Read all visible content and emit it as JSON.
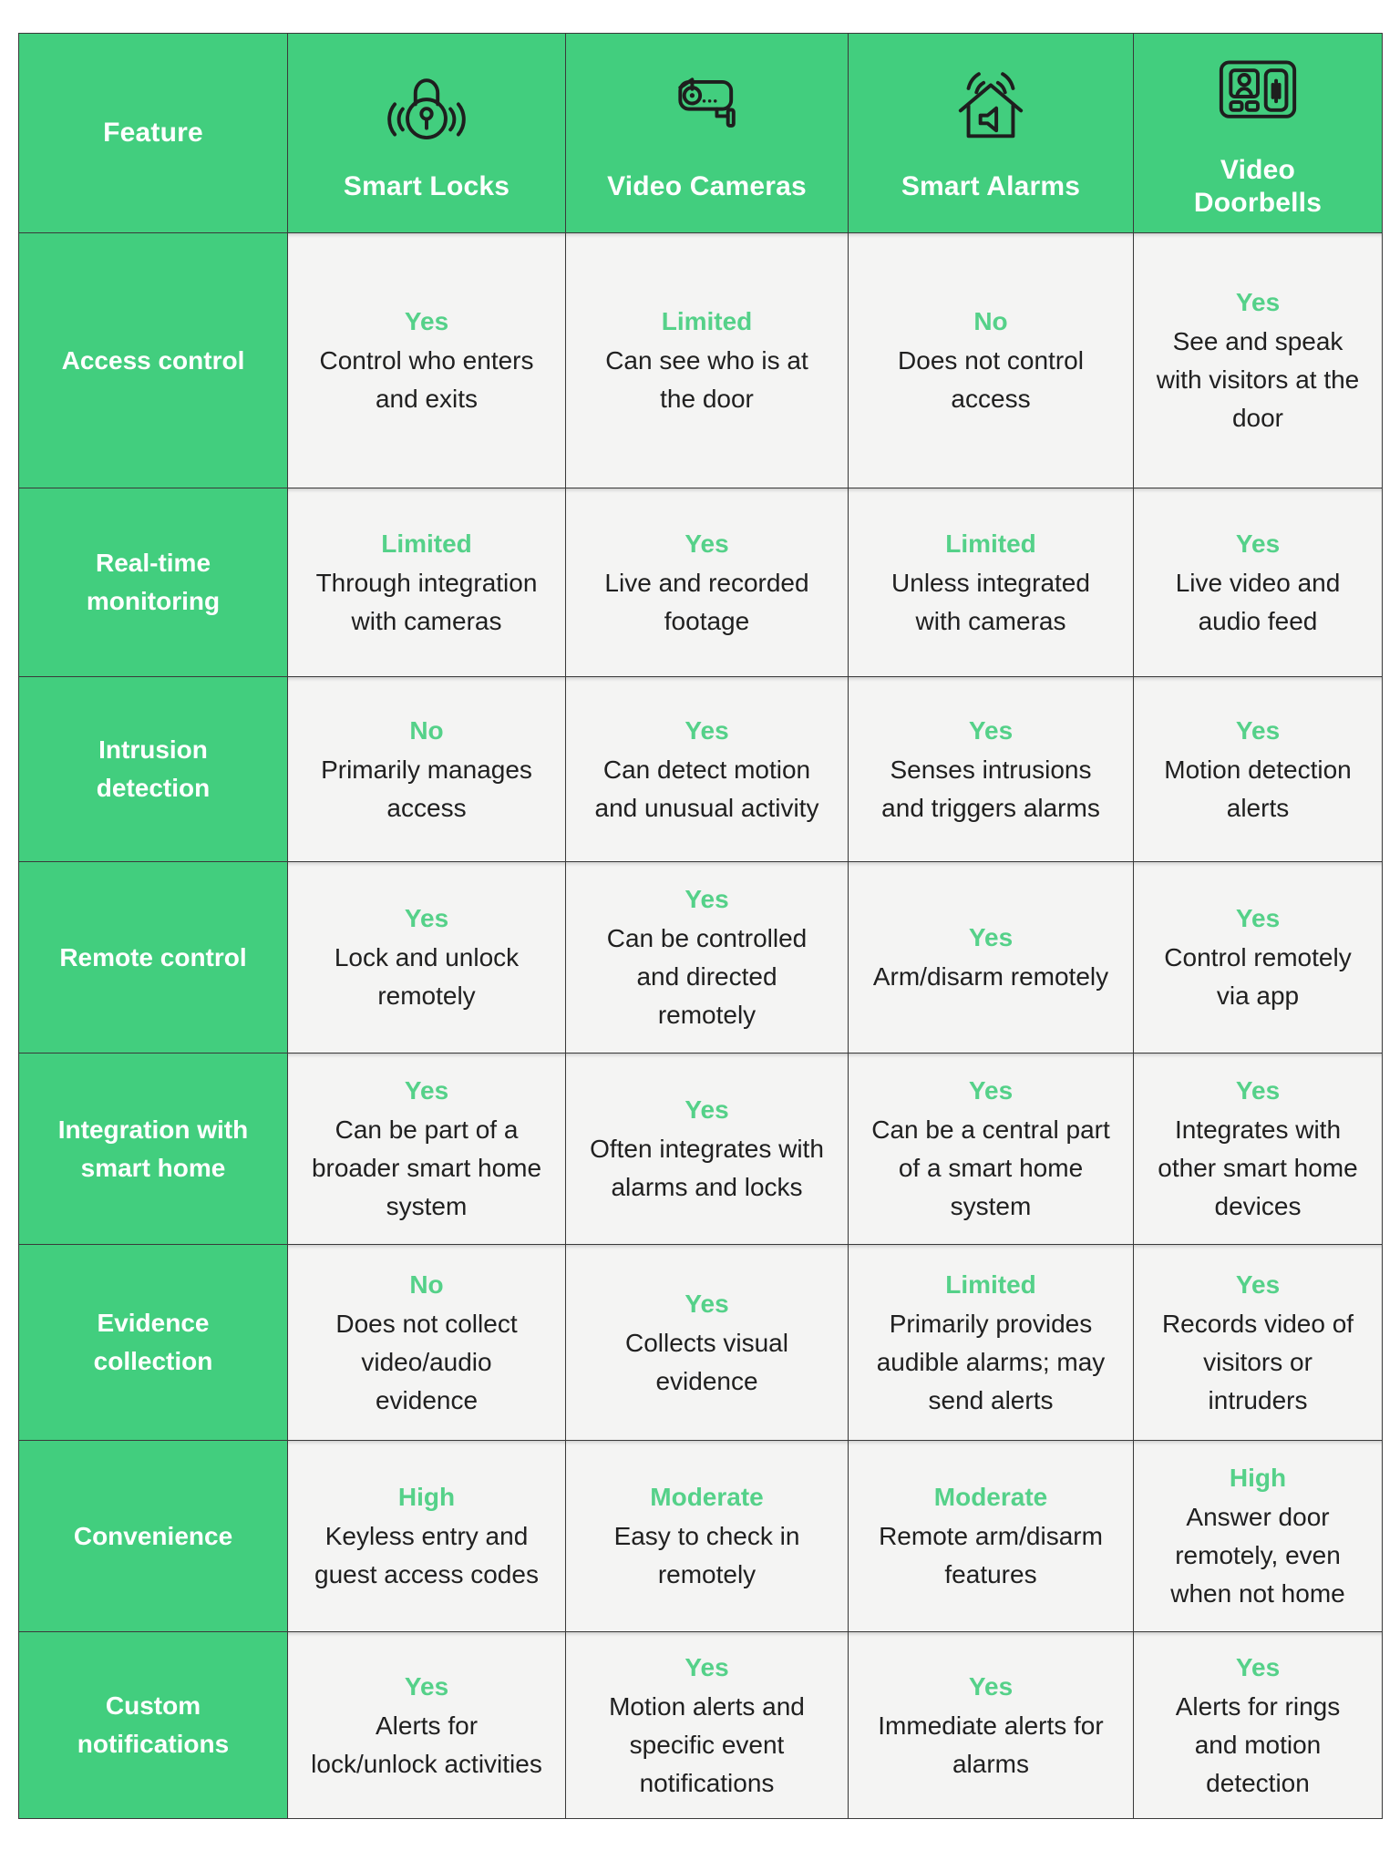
{
  "chart_data": {
    "type": "table",
    "header": {
      "feature_label": "Feature",
      "columns": [
        {
          "label": "Smart Locks",
          "icon": "smart-lock-icon"
        },
        {
          "label": "Video Cameras",
          "icon": "video-camera-icon"
        },
        {
          "label": "Smart Alarms",
          "icon": "smart-alarm-icon"
        },
        {
          "label": "Video Doorbells",
          "icon": "video-doorbell-icon"
        }
      ]
    },
    "rows": [
      {
        "feature": "Access control",
        "cells": [
          {
            "status": "Yes",
            "text": "Control who enters and exits"
          },
          {
            "status": "Limited",
            "text": "Can see who is at the door"
          },
          {
            "status": "No",
            "text": "Does not control access"
          },
          {
            "status": "Yes",
            "text": "See and speak with visitors at the door"
          }
        ]
      },
      {
        "feature": "Real-time monitoring",
        "cells": [
          {
            "status": "Limited",
            "text": "Through integration with cameras"
          },
          {
            "status": "Yes",
            "text": "Live and recorded footage"
          },
          {
            "status": "Limited",
            "text": "Unless integrated with cameras"
          },
          {
            "status": "Yes",
            "text": "Live video and audio feed"
          }
        ]
      },
      {
        "feature": "Intrusion detection",
        "cells": [
          {
            "status": "No",
            "text": "Primarily manages access"
          },
          {
            "status": "Yes",
            "text": "Can detect motion and unusual activity"
          },
          {
            "status": "Yes",
            "text": "Senses intrusions and triggers alarms"
          },
          {
            "status": "Yes",
            "text": "Motion detection alerts"
          }
        ]
      },
      {
        "feature": "Remote control",
        "cells": [
          {
            "status": "Yes",
            "text": "Lock and unlock remotely"
          },
          {
            "status": "Yes",
            "text": "Can be controlled and directed remotely"
          },
          {
            "status": "Yes",
            "text": "Arm/disarm remotely"
          },
          {
            "status": "Yes",
            "text": "Control remotely via app"
          }
        ]
      },
      {
        "feature": "Integration with smart home",
        "cells": [
          {
            "status": "Yes",
            "text": "Can be part of a broader smart home system"
          },
          {
            "status": "Yes",
            "text": "Often integrates with alarms and locks"
          },
          {
            "status": "Yes",
            "text": "Can be a central part of a smart home system"
          },
          {
            "status": "Yes",
            "text": "Integrates with other smart home devices"
          }
        ]
      },
      {
        "feature": "Evidence collection",
        "cells": [
          {
            "status": "No",
            "text": "Does not collect video/audio evidence"
          },
          {
            "status": "Yes",
            "text": "Collects visual evidence"
          },
          {
            "status": "Limited",
            "text": "Primarily provides audible alarms; may send alerts"
          },
          {
            "status": "Yes",
            "text": "Records video of visitors or intruders"
          }
        ]
      },
      {
        "feature": "Convenience",
        "cells": [
          {
            "status": "High",
            "text": "Keyless entry and guest access codes"
          },
          {
            "status": "Moderate",
            "text": "Easy to check in remotely"
          },
          {
            "status": "Moderate",
            "text": "Remote arm/disarm features"
          },
          {
            "status": "High",
            "text": "Answer door remotely, even when not home"
          }
        ]
      },
      {
        "feature": "Custom notifications",
        "cells": [
          {
            "status": "Yes",
            "text": "Alerts for lock/unlock activities"
          },
          {
            "status": "Yes",
            "text": "Motion alerts and specific event notifications"
          },
          {
            "status": "Yes",
            "text": "Immediate alerts for alarms"
          },
          {
            "status": "Yes",
            "text": "Alerts for rings and motion detection"
          }
        ]
      }
    ],
    "colors": {
      "header_green": "#42ce7e",
      "status_green": "#55d189",
      "cell_background": "#f4f4f3",
      "body_text": "#202020",
      "border": "#3a3a3a",
      "header_text": "#ffffff",
      "icon_stroke": "#1e1e1e"
    }
  }
}
